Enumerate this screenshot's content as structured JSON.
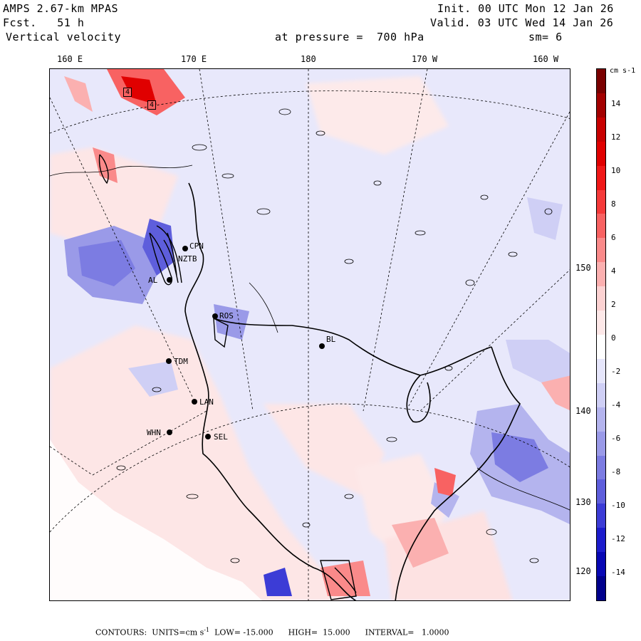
{
  "header": {
    "model": "AMPS 2.67-km MPAS",
    "forecast": "Fcst.   51 h",
    "field": "Vertical velocity",
    "init": "Init. 00 UTC Mon 12 Jan 26",
    "valid": "Valid. 03 UTC Wed 14 Jan 26",
    "pressure": "at pressure =  700 hPa",
    "smoothing": "sm= 6"
  },
  "longitude_labels": [
    "160 E",
    "170 E",
    "180",
    "170 W",
    "160 W"
  ],
  "latitude_labels": [
    "150 W",
    "140 W",
    "130 W",
    "120 W"
  ],
  "stations": [
    {
      "id": "CPN"
    },
    {
      "id": "NZTB"
    },
    {
      "id": "AL"
    },
    {
      "id": "ROS"
    },
    {
      "id": "TDM"
    },
    {
      "id": "LAN"
    },
    {
      "id": "WHN"
    },
    {
      "id": "SEL"
    },
    {
      "id": "BL"
    }
  ],
  "contour_labels": [
    "4",
    "4"
  ],
  "colorbar": {
    "unit": "cm s-1",
    "ticks": [
      "14",
      "12",
      "10",
      "8",
      "6",
      "4",
      "2",
      "0",
      "-2",
      "-4",
      "-6",
      "-8",
      "-10",
      "-12",
      "-14"
    ],
    "colors": [
      "#7a0000",
      "#a30000",
      "#c80000",
      "#e00000",
      "#f01818",
      "#f53a3a",
      "#f86262",
      "#fa8a8a",
      "#fbb0b0",
      "#fcd2d2",
      "#fde8e8",
      "#ffffff",
      "#e6e6fb",
      "#cfcff5",
      "#b4b4ee",
      "#9a9ae8",
      "#7c7ce2",
      "#5e5edc",
      "#3c3cd6",
      "#1c1ccc",
      "#0808b4",
      "#00008c"
    ]
  },
  "footer": {
    "contours": "CONTOURS:  UNITS=cm s",
    "units_exp": "-1",
    "low": "LOW= -15.000",
    "high": "HIGH=  15.000",
    "interval": "INTERVAL=   1.0000"
  }
}
